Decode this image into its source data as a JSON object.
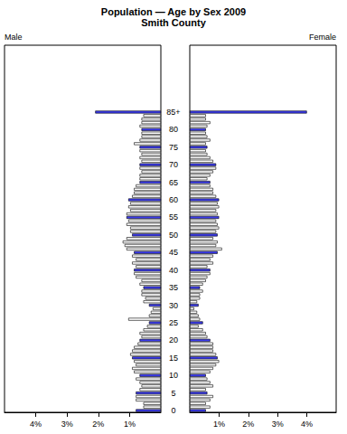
{
  "chart_data": {
    "type": "bar",
    "orientation": "horizontal",
    "title": "Population — Age by Sex 2009",
    "subtitle": "Smith County",
    "categories": [
      "0",
      null,
      null,
      null,
      null,
      "5",
      null,
      null,
      null,
      null,
      "10",
      null,
      null,
      null,
      null,
      "15",
      null,
      null,
      null,
      null,
      "20",
      null,
      null,
      null,
      null,
      "25",
      null,
      null,
      null,
      null,
      "30",
      null,
      null,
      null,
      null,
      "35",
      null,
      null,
      null,
      null,
      "40",
      null,
      null,
      null,
      null,
      "45",
      null,
      null,
      null,
      null,
      "50",
      null,
      null,
      null,
      null,
      "55",
      null,
      null,
      null,
      null,
      "60",
      null,
      null,
      null,
      null,
      "65",
      null,
      null,
      null,
      null,
      "70",
      null,
      null,
      null,
      null,
      "75",
      null,
      null,
      null,
      null,
      "80",
      null,
      null,
      null,
      null,
      "85+"
    ],
    "series": [
      {
        "name": "Male",
        "values": [
          0.8,
          0.56,
          0.56,
          0.8,
          0.8,
          0.8,
          0.68,
          0.62,
          0.68,
          0.8,
          0.68,
          0.86,
          0.92,
          0.8,
          0.86,
          0.92,
          0.98,
          0.92,
          0.86,
          0.74,
          0.68,
          0.62,
          0.68,
          0.56,
          0.44,
          0.38,
          1.04,
          0.38,
          0.32,
          0.26,
          0.38,
          0.56,
          0.5,
          0.62,
          0.62,
          0.56,
          0.68,
          0.62,
          0.8,
          0.86,
          0.86,
          0.8,
          0.92,
          0.8,
          0.92,
          0.86,
          1.1,
          1.16,
          1.22,
          1.1,
          0.92,
          0.98,
          0.98,
          1.1,
          1.04,
          1.1,
          1.1,
          0.98,
          1.04,
          0.98,
          1.04,
          0.92,
          0.86,
          0.86,
          0.8,
          0.68,
          0.68,
          0.68,
          0.62,
          0.68,
          0.68,
          0.62,
          0.68,
          0.62,
          0.68,
          0.68,
          0.86,
          0.68,
          0.62,
          0.62,
          0.62,
          0.68,
          0.62,
          0.62,
          0.56,
          2.1
        ],
        "colors": [
          "#3c3cf0",
          "#ffffff",
          "#ffffff",
          "#ffffff",
          "#ffffff",
          "#3c3cf0",
          "#ffffff",
          "#ffffff",
          "#ffffff",
          "#ffffff",
          "#3c3cf0",
          "#ffffff",
          "#ffffff",
          "#ffffff",
          "#ffffff",
          "#3c3cf0",
          "#ffffff",
          "#ffffff",
          "#ffffff",
          "#ffffff",
          "#3c3cf0",
          "#ffffff",
          "#ffffff",
          "#ffffff",
          "#ffffff",
          "#3c3cf0",
          "#ffffff",
          "#ffffff",
          "#ffffff",
          "#ffffff",
          "#3c3cf0",
          "#ffffff",
          "#ffffff",
          "#ffffff",
          "#ffffff",
          "#3c3cf0",
          "#ffffff",
          "#ffffff",
          "#ffffff",
          "#ffffff",
          "#3c3cf0",
          "#ffffff",
          "#ffffff",
          "#ffffff",
          "#ffffff",
          "#3c3cf0",
          "#ffffff",
          "#ffffff",
          "#ffffff",
          "#ffffff",
          "#3c3cf0",
          "#ffffff",
          "#ffffff",
          "#ffffff",
          "#ffffff",
          "#3c3cf0",
          "#ffffff",
          "#ffffff",
          "#ffffff",
          "#ffffff",
          "#3c3cf0",
          "#ffffff",
          "#ffffff",
          "#ffffff",
          "#ffffff",
          "#3c3cf0",
          "#ffffff",
          "#ffffff",
          "#ffffff",
          "#ffffff",
          "#3c3cf0",
          "#ffffff",
          "#ffffff",
          "#ffffff",
          "#ffffff",
          "#3c3cf0",
          "#ffffff",
          "#ffffff",
          "#ffffff",
          "#ffffff",
          "#3c3cf0",
          "#ffffff",
          "#ffffff",
          "#ffffff",
          "#ffffff",
          "#3c3cf0"
        ]
      },
      {
        "name": "Female",
        "values": [
          0.55,
          0.7,
          0.55,
          0.7,
          0.8,
          0.6,
          0.55,
          0.8,
          0.7,
          0.6,
          0.55,
          0.7,
          0.8,
          0.9,
          1.0,
          0.95,
          0.9,
          0.8,
          0.8,
          0.8,
          0.7,
          0.6,
          0.55,
          0.45,
          0.3,
          0.45,
          0.35,
          0.3,
          0.25,
          0.15,
          0.3,
          0.25,
          0.35,
          0.35,
          0.45,
          0.35,
          0.45,
          0.55,
          0.6,
          0.7,
          0.7,
          0.6,
          0.8,
          0.7,
          0.8,
          0.95,
          1.1,
          0.9,
          0.95,
          0.8,
          0.95,
          0.9,
          1.0,
          0.95,
          0.9,
          1.0,
          0.95,
          0.9,
          1.0,
          0.95,
          1.0,
          0.9,
          0.8,
          0.8,
          0.7,
          0.7,
          0.6,
          0.7,
          0.8,
          0.9,
          0.9,
          0.8,
          0.7,
          0.6,
          0.55,
          0.6,
          0.55,
          0.7,
          0.6,
          0.55,
          0.55,
          0.6,
          0.7,
          0.55,
          0.55,
          4.0
        ],
        "colors": [
          "#3c3cf0",
          "#ffffff",
          "#ffffff",
          "#ffffff",
          "#ffffff",
          "#3c3cf0",
          "#ffffff",
          "#ffffff",
          "#ffffff",
          "#ffffff",
          "#3c3cf0",
          "#ffffff",
          "#ffffff",
          "#ffffff",
          "#ffffff",
          "#3c3cf0",
          "#ffffff",
          "#ffffff",
          "#ffffff",
          "#ffffff",
          "#3c3cf0",
          "#ffffff",
          "#ffffff",
          "#ffffff",
          "#ffffff",
          "#3c3cf0",
          "#ffffff",
          "#ffffff",
          "#ffffff",
          "#ffffff",
          "#3c3cf0",
          "#ffffff",
          "#ffffff",
          "#ffffff",
          "#ffffff",
          "#3c3cf0",
          "#ffffff",
          "#ffffff",
          "#ffffff",
          "#ffffff",
          "#3c3cf0",
          "#ffffff",
          "#ffffff",
          "#ffffff",
          "#ffffff",
          "#3c3cf0",
          "#ffffff",
          "#ffffff",
          "#ffffff",
          "#ffffff",
          "#3c3cf0",
          "#ffffff",
          "#ffffff",
          "#ffffff",
          "#ffffff",
          "#3c3cf0",
          "#ffffff",
          "#ffffff",
          "#ffffff",
          "#ffffff",
          "#3c3cf0",
          "#ffffff",
          "#ffffff",
          "#ffffff",
          "#ffffff",
          "#3c3cf0",
          "#ffffff",
          "#ffffff",
          "#ffffff",
          "#ffffff",
          "#3c3cf0",
          "#ffffff",
          "#ffffff",
          "#ffffff",
          "#ffffff",
          "#3c3cf0",
          "#ffffff",
          "#ffffff",
          "#ffffff",
          "#ffffff",
          "#3c3cf0",
          "#ffffff",
          "#ffffff",
          "#ffffff",
          "#ffffff",
          "#3c3cf0"
        ]
      }
    ],
    "xlim": [
      0,
      5
    ],
    "xticks": [
      {
        "value": 1,
        "label": "1%"
      },
      {
        "value": 2,
        "label": "2%"
      },
      {
        "value": 3,
        "label": "3%"
      },
      {
        "value": 4,
        "label": "4%"
      }
    ],
    "grid": false
  }
}
